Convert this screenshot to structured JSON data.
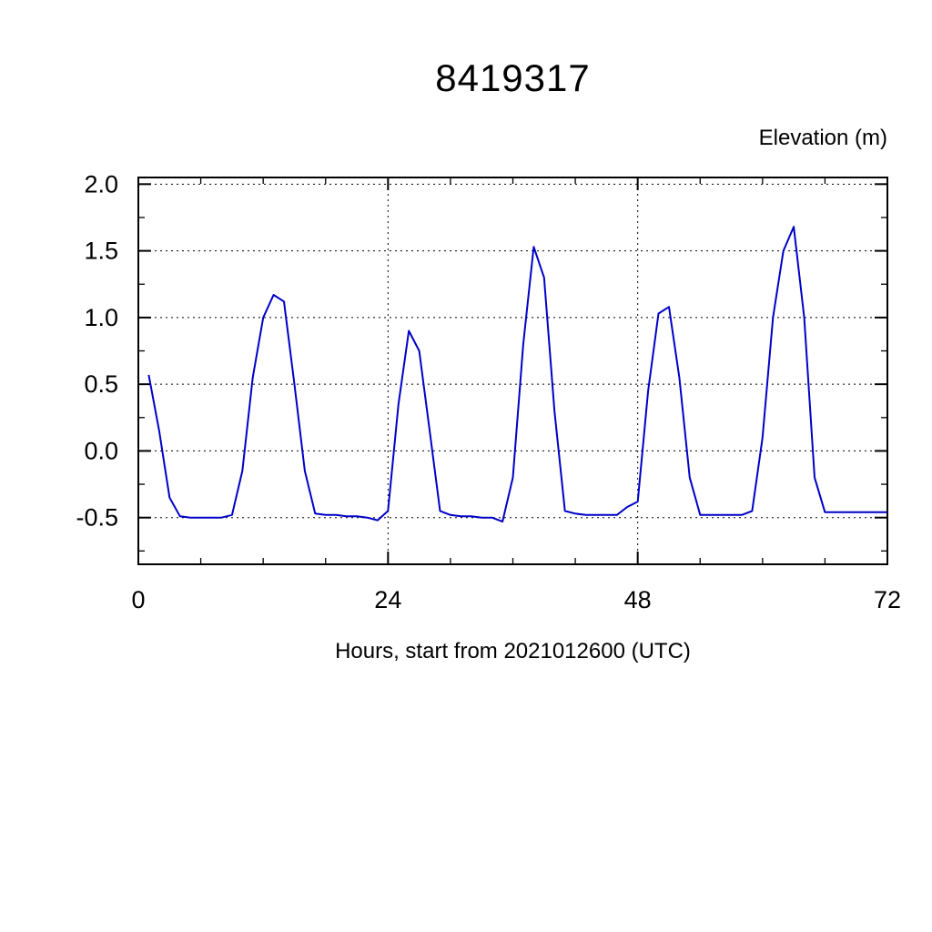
{
  "title": "8419317",
  "y_unit_label": "Elevation (m)",
  "x_axis_label": "Hours, start from 2021012600 (UTC)",
  "chart_data": {
    "type": "line",
    "title": "8419317",
    "xlabel": "Hours, start from 2021012600 (UTC)",
    "ylabel": "Elevation (m)",
    "xlim": [
      0,
      72
    ],
    "ylim": [
      -0.85,
      2.05
    ],
    "x_major_ticks": [
      0,
      24,
      48,
      72
    ],
    "x_tick_labels": [
      "0",
      "24",
      "48",
      "72"
    ],
    "x_minor_step": 6,
    "y_major_ticks": [
      -0.5,
      0.0,
      0.5,
      1.0,
      1.5,
      2.0
    ],
    "y_tick_labels": [
      "-0.5",
      "0.0",
      "0.5",
      "1.0",
      "1.5",
      "2.0"
    ],
    "y_minor_step": 0.25,
    "grid_x": [
      24,
      48
    ],
    "grid_y": [
      -0.5,
      0.0,
      0.5,
      1.0,
      1.5,
      2.0
    ],
    "grid_on": true,
    "legend": "none",
    "line_color": "#0000c8",
    "axis_color": "#000000",
    "series": [
      {
        "name": "elevation",
        "x": [
          1,
          2,
          3,
          4,
          5,
          6,
          7,
          8,
          9,
          10,
          11,
          12,
          13,
          14,
          15,
          16,
          17,
          18,
          19,
          20,
          21,
          22,
          23,
          24,
          25,
          26,
          27,
          28,
          29,
          30,
          31,
          32,
          33,
          34,
          35,
          36,
          37,
          38,
          39,
          40,
          41,
          42,
          43,
          44,
          45,
          46,
          47,
          48,
          49,
          50,
          51,
          52,
          53,
          54,
          55,
          56,
          57,
          58,
          59,
          60,
          61,
          62,
          63,
          64,
          65,
          66,
          67,
          68,
          69,
          70,
          71,
          72
        ],
        "y": [
          0.57,
          0.15,
          -0.35,
          -0.49,
          -0.5,
          -0.5,
          -0.5,
          -0.5,
          -0.48,
          -0.15,
          0.55,
          1.0,
          1.17,
          1.12,
          0.5,
          -0.15,
          -0.47,
          -0.48,
          -0.48,
          -0.49,
          -0.49,
          -0.5,
          -0.52,
          -0.45,
          0.35,
          0.9,
          0.75,
          0.15,
          -0.45,
          -0.48,
          -0.49,
          -0.49,
          -0.5,
          -0.5,
          -0.53,
          -0.2,
          0.8,
          1.53,
          1.3,
          0.3,
          -0.45,
          -0.47,
          -0.48,
          -0.48,
          -0.48,
          -0.48,
          -0.42,
          -0.38,
          0.45,
          1.03,
          1.08,
          0.55,
          -0.2,
          -0.48,
          -0.48,
          -0.48,
          -0.48,
          -0.48,
          -0.45,
          0.1,
          1.0,
          1.5,
          1.68,
          1.0,
          -0.2,
          -0.46,
          -0.46,
          -0.46,
          -0.46,
          -0.46,
          -0.46,
          -0.46
        ]
      }
    ]
  }
}
